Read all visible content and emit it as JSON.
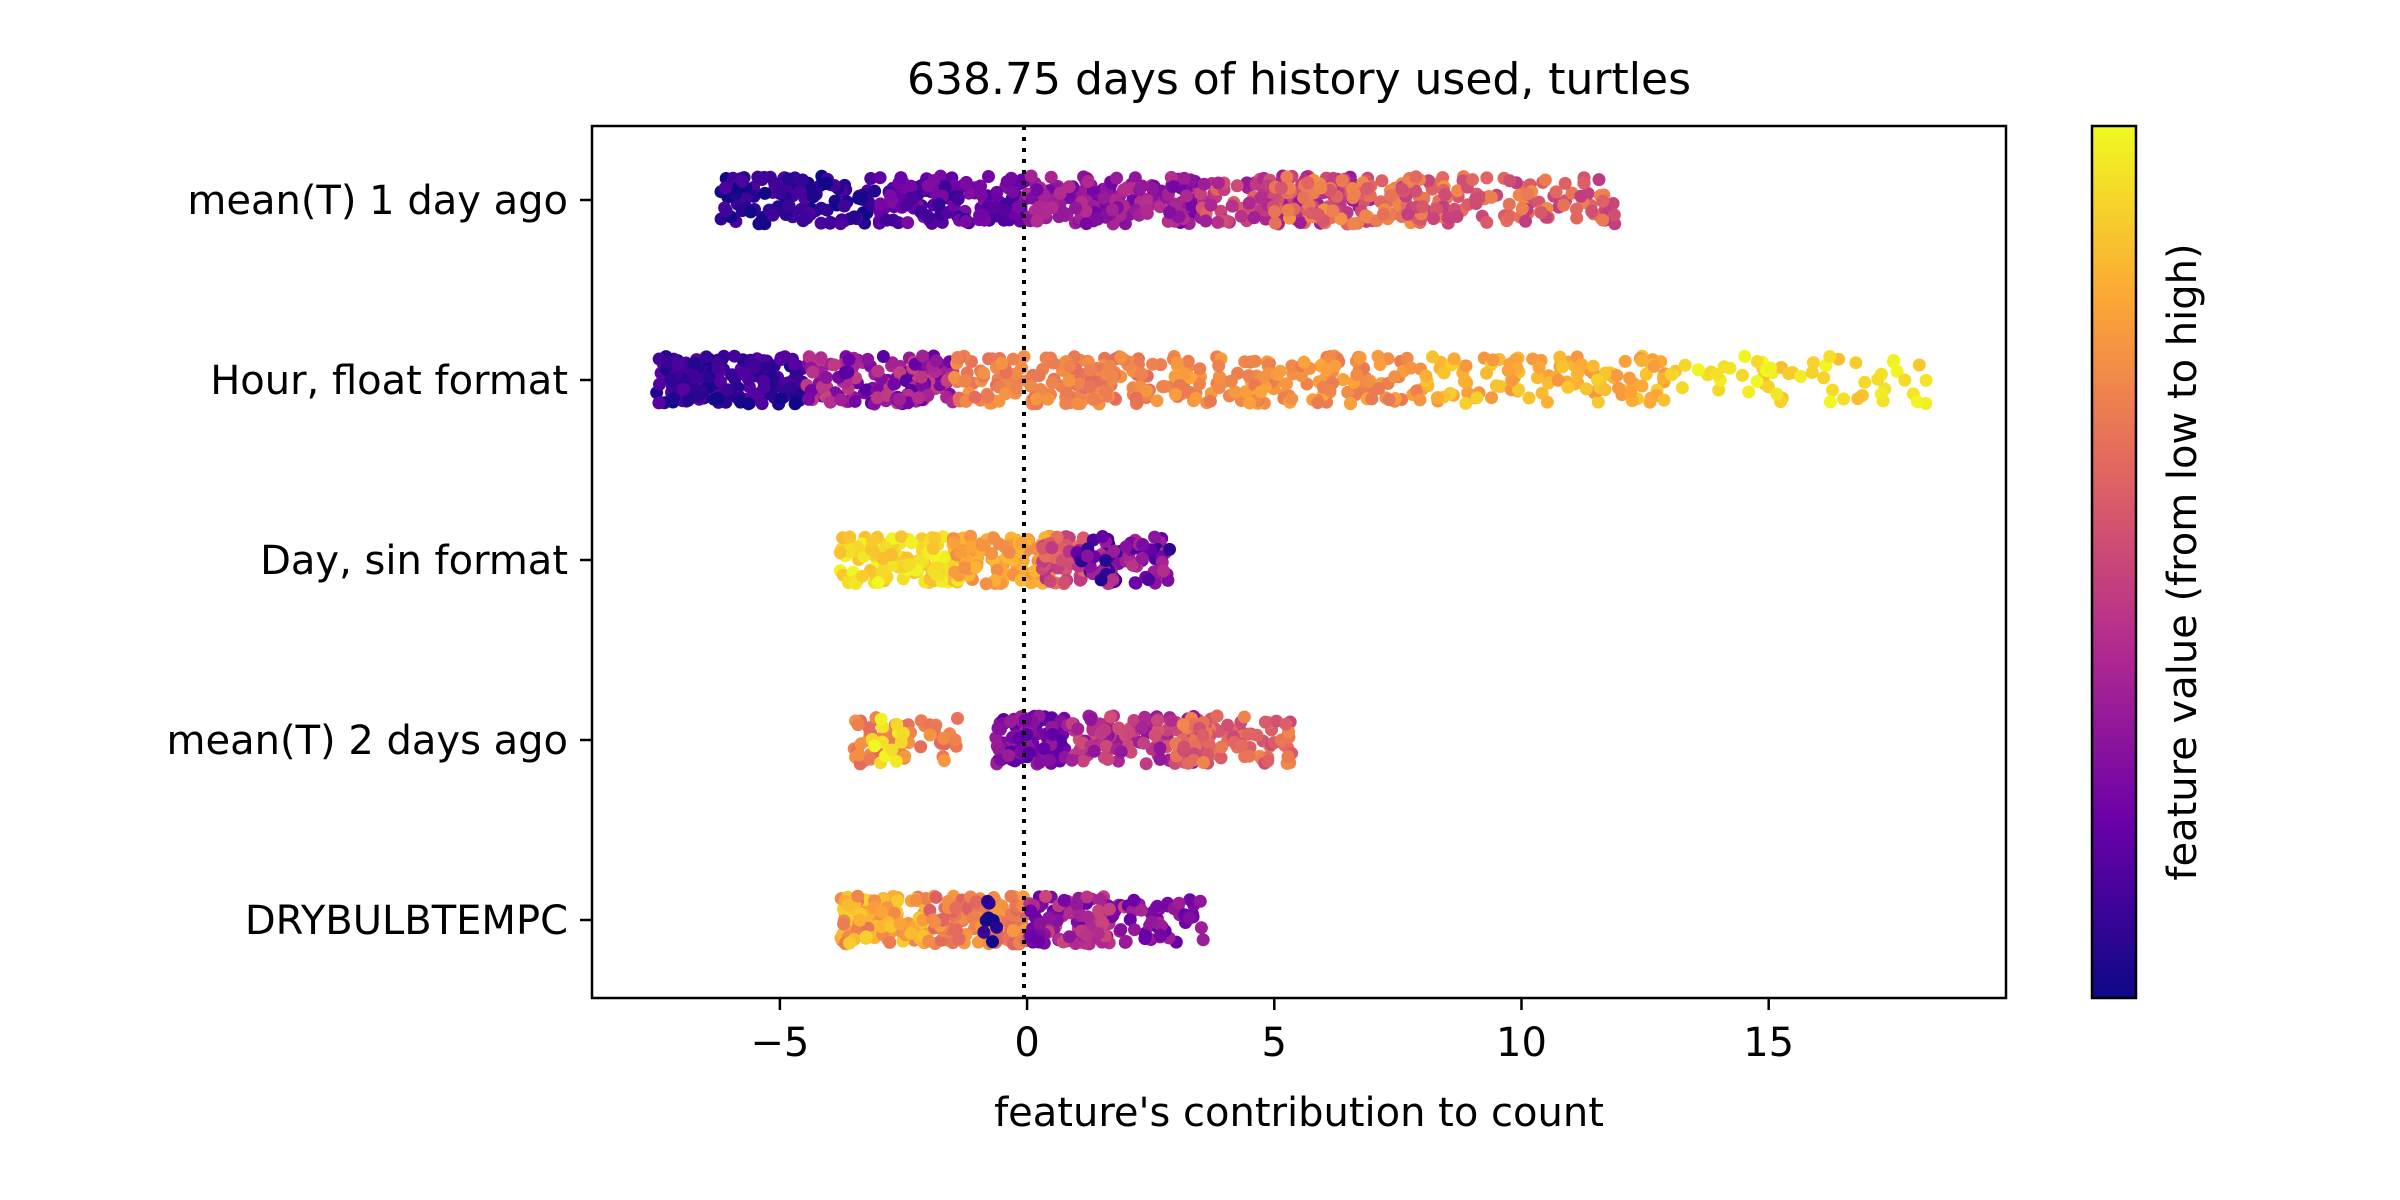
{
  "chart_data": {
    "type": "scatter",
    "title": "638.75 days of history used, turtles",
    "xlabel": "feature's contribution to count",
    "ylabel": "",
    "xlim": [
      -8.8,
      19.8
    ],
    "x_ticks": [
      "−5",
      "0",
      "5",
      "10",
      "15"
    ],
    "x_tick_values": [
      -5,
      0,
      5,
      10,
      15
    ],
    "zero_line": {
      "x": 0,
      "style": "dotted",
      "color": "#000000"
    },
    "grid": false,
    "colormap": "plasma",
    "colorbar": {
      "label": "feature value (from low to high)",
      "range": [
        0,
        1
      ],
      "colors": [
        "#0d0887",
        "#6a00a8",
        "#b12a90",
        "#e16462",
        "#fca636",
        "#f0f921"
      ]
    },
    "features": [
      {
        "name": "mean(T) 1 day ago",
        "segments": [
          {
            "x_min": -6.2,
            "x_max": -3.0,
            "v_min": 0.0,
            "v_max": 0.15,
            "n": 120
          },
          {
            "x_min": -3.0,
            "x_max": 0.0,
            "v_min": 0.08,
            "v_max": 0.28,
            "n": 150
          },
          {
            "x_min": 0.0,
            "x_max": 3.5,
            "v_min": 0.22,
            "v_max": 0.42,
            "n": 160
          },
          {
            "x_min": 3.5,
            "x_max": 7.0,
            "v_min": 0.32,
            "v_max": 0.62,
            "n": 140
          },
          {
            "x_min": 5.0,
            "x_max": 8.5,
            "v_min": 0.55,
            "v_max": 0.74,
            "n": 90
          },
          {
            "x_min": 7.5,
            "x_max": 11.9,
            "v_min": 0.45,
            "v_max": 0.72,
            "n": 110
          }
        ]
      },
      {
        "name": "Hour, float format",
        "segments": [
          {
            "x_min": -7.5,
            "x_max": -4.5,
            "v_min": 0.0,
            "v_max": 0.18,
            "n": 170
          },
          {
            "x_min": -4.5,
            "x_max": -1.5,
            "v_min": 0.15,
            "v_max": 0.5,
            "n": 150
          },
          {
            "x_min": -1.5,
            "x_max": 2.5,
            "v_min": 0.62,
            "v_max": 0.75,
            "n": 170
          },
          {
            "x_min": 2.5,
            "x_max": 8.0,
            "v_min": 0.66,
            "v_max": 0.8,
            "n": 170
          },
          {
            "x_min": 8.0,
            "x_max": 13.0,
            "v_min": 0.74,
            "v_max": 0.9,
            "n": 120
          },
          {
            "x_min": 13.0,
            "x_max": 18.4,
            "v_min": 0.85,
            "v_max": 1.0,
            "n": 60
          }
        ]
      },
      {
        "name": "Day, sin format",
        "segments": [
          {
            "x_min": -3.8,
            "x_max": -1.2,
            "v_min": 0.85,
            "v_max": 1.0,
            "n": 150
          },
          {
            "x_min": -1.5,
            "x_max": 0.5,
            "v_min": 0.7,
            "v_max": 0.85,
            "n": 120
          },
          {
            "x_min": 0.3,
            "x_max": 1.2,
            "v_min": 0.4,
            "v_max": 0.65,
            "n": 50
          },
          {
            "x_min": 1.0,
            "x_max": 2.9,
            "v_min": 0.05,
            "v_max": 0.45,
            "n": 90
          }
        ]
      },
      {
        "name": "mean(T) 2 days ago",
        "segments": [
          {
            "x_min": -3.5,
            "x_max": -1.4,
            "v_min": 0.6,
            "v_max": 0.76,
            "n": 60
          },
          {
            "x_min": -3.2,
            "x_max": -2.5,
            "v_min": 0.9,
            "v_max": 1.0,
            "n": 14
          },
          {
            "x_min": -0.7,
            "x_max": 0.8,
            "v_min": 0.15,
            "v_max": 0.35,
            "n": 110
          },
          {
            "x_min": 0.8,
            "x_max": 3.5,
            "v_min": 0.3,
            "v_max": 0.55,
            "n": 130
          },
          {
            "x_min": 3.0,
            "x_max": 5.4,
            "v_min": 0.5,
            "v_max": 0.72,
            "n": 90
          }
        ]
      },
      {
        "name": "DRYBULBTEMPC",
        "segments": [
          {
            "x_min": -3.8,
            "x_max": -2.0,
            "v_min": 0.65,
            "v_max": 0.92,
            "n": 110
          },
          {
            "x_min": -2.0,
            "x_max": 0.0,
            "v_min": 0.58,
            "v_max": 0.78,
            "n": 130
          },
          {
            "x_min": -0.9,
            "x_max": -0.6,
            "v_min": 0.0,
            "v_max": 0.1,
            "n": 8
          },
          {
            "x_min": 0.0,
            "x_max": 2.0,
            "v_min": 0.2,
            "v_max": 0.5,
            "n": 110
          },
          {
            "x_min": 2.0,
            "x_max": 3.7,
            "v_min": 0.18,
            "v_max": 0.38,
            "n": 50
          }
        ]
      }
    ]
  }
}
